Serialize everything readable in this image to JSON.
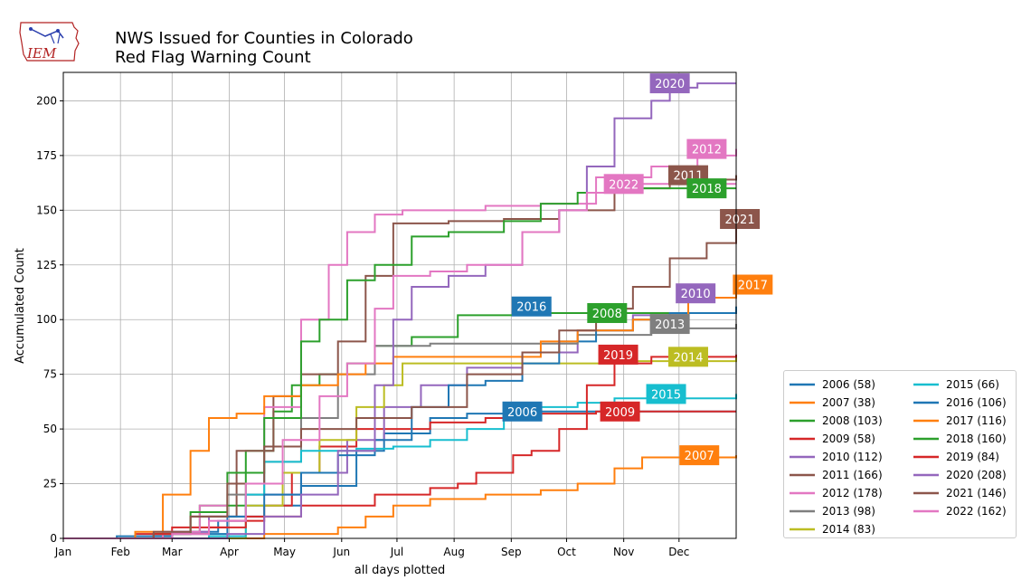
{
  "header": {
    "title_line1": "NWS Issued for Counties in Colorado",
    "title_line2": "Red Flag Warning Count",
    "logo_text": "IEM"
  },
  "chart_data": {
    "type": "line",
    "step": true,
    "xlabel": "all days plotted",
    "ylabel": "Accumulated Count",
    "x_unit": "day of year",
    "xlim": [
      1,
      366
    ],
    "ylim": [
      0,
      213
    ],
    "grid": true,
    "legend_placement": "outside-right-bottom",
    "month_ticks": [
      {
        "label": "Jan",
        "day": 1
      },
      {
        "label": "Feb",
        "day": 32
      },
      {
        "label": "Mar",
        "day": 60
      },
      {
        "label": "Apr",
        "day": 91
      },
      {
        "label": "May",
        "day": 121
      },
      {
        "label": "Jun",
        "day": 152
      },
      {
        "label": "Jul",
        "day": 182
      },
      {
        "label": "Aug",
        "day": 213
      },
      {
        "label": "Sep",
        "day": 244
      },
      {
        "label": "Oct",
        "day": 274
      },
      {
        "label": "Nov",
        "day": 305
      },
      {
        "label": "Dec",
        "day": 335
      }
    ],
    "y_ticks": [
      0,
      25,
      50,
      75,
      100,
      125,
      150,
      175,
      200
    ],
    "series": [
      {
        "name": "2006 (58)",
        "year": "2006",
        "color": "#1f77b4",
        "points": [
          [
            1,
            0
          ],
          [
            30,
            1
          ],
          [
            60,
            3
          ],
          [
            85,
            8
          ],
          [
            100,
            15
          ],
          [
            130,
            24
          ],
          [
            160,
            40
          ],
          [
            175,
            48
          ],
          [
            200,
            55
          ],
          [
            220,
            57
          ],
          [
            240,
            58
          ],
          [
            366,
            58
          ]
        ],
        "label_day": 250,
        "label_y": 58
      },
      {
        "name": "2007 (38)",
        "year": "2007",
        "color": "#ff7f0e",
        "points": [
          [
            1,
            0
          ],
          [
            95,
            0
          ],
          [
            110,
            2
          ],
          [
            150,
            5
          ],
          [
            165,
            10
          ],
          [
            180,
            15
          ],
          [
            200,
            18
          ],
          [
            230,
            20
          ],
          [
            260,
            22
          ],
          [
            280,
            25
          ],
          [
            300,
            32
          ],
          [
            315,
            37
          ],
          [
            366,
            38
          ]
        ],
        "label_day": 346,
        "label_y": 38
      },
      {
        "name": "2008 (103)",
        "year": "2008",
        "color": "#2ca02c",
        "points": [
          [
            1,
            0
          ],
          [
            55,
            3
          ],
          [
            75,
            15
          ],
          [
            100,
            40
          ],
          [
            115,
            58
          ],
          [
            125,
            70
          ],
          [
            140,
            75
          ],
          [
            155,
            80
          ],
          [
            170,
            88
          ],
          [
            190,
            92
          ],
          [
            215,
            102
          ],
          [
            250,
            103
          ],
          [
            366,
            103
          ]
        ],
        "label_day": 296,
        "label_y": 103
      },
      {
        "name": "2009 (58)",
        "year": "2009",
        "color": "#d62728",
        "points": [
          [
            1,
            0
          ],
          [
            40,
            2
          ],
          [
            60,
            5
          ],
          [
            90,
            8
          ],
          [
            110,
            15
          ],
          [
            125,
            30
          ],
          [
            140,
            42
          ],
          [
            160,
            50
          ],
          [
            200,
            53
          ],
          [
            230,
            55
          ],
          [
            260,
            57
          ],
          [
            290,
            58
          ],
          [
            366,
            58
          ]
        ],
        "label_day": 303,
        "label_y": 58
      },
      {
        "name": "2010 (112)",
        "year": "2010",
        "color": "#9467bd",
        "points": [
          [
            1,
            0
          ],
          [
            60,
            3
          ],
          [
            80,
            10
          ],
          [
            100,
            20
          ],
          [
            130,
            30
          ],
          [
            155,
            45
          ],
          [
            175,
            60
          ],
          [
            195,
            70
          ],
          [
            220,
            78
          ],
          [
            250,
            85
          ],
          [
            280,
            95
          ],
          [
            310,
            102
          ],
          [
            340,
            110
          ],
          [
            366,
            112
          ]
        ],
        "label_day": 344,
        "label_y": 112
      },
      {
        "name": "2011 (166)",
        "year": "2011",
        "color": "#8c564b",
        "points": [
          [
            1,
            0
          ],
          [
            50,
            2
          ],
          [
            70,
            10
          ],
          [
            95,
            40
          ],
          [
            115,
            65
          ],
          [
            130,
            75
          ],
          [
            150,
            90
          ],
          [
            165,
            120
          ],
          [
            180,
            144
          ],
          [
            210,
            145
          ],
          [
            240,
            146
          ],
          [
            270,
            150
          ],
          [
            300,
            160
          ],
          [
            330,
            164
          ],
          [
            366,
            166
          ]
        ],
        "label_day": 340,
        "label_y": 166
      },
      {
        "name": "2012 (178)",
        "year": "2012",
        "color": "#e377c2",
        "points": [
          [
            1,
            0
          ],
          [
            55,
            3
          ],
          [
            75,
            15
          ],
          [
            90,
            30
          ],
          [
            110,
            60
          ],
          [
            130,
            100
          ],
          [
            145,
            125
          ],
          [
            155,
            140
          ],
          [
            170,
            148
          ],
          [
            185,
            150
          ],
          [
            230,
            152
          ],
          [
            260,
            153
          ],
          [
            290,
            165
          ],
          [
            320,
            170
          ],
          [
            345,
            175
          ],
          [
            366,
            178
          ]
        ],
        "label_day": 350,
        "label_y": 178
      },
      {
        "name": "2013 (98)",
        "year": "2013",
        "color": "#7f7f7f",
        "points": [
          [
            1,
            0
          ],
          [
            50,
            2
          ],
          [
            70,
            10
          ],
          [
            90,
            20
          ],
          [
            110,
            35
          ],
          [
            130,
            55
          ],
          [
            150,
            75
          ],
          [
            170,
            88
          ],
          [
            200,
            89
          ],
          [
            240,
            89
          ],
          [
            280,
            93
          ],
          [
            320,
            96
          ],
          [
            366,
            98
          ]
        ],
        "label_day": 330,
        "label_y": 98
      },
      {
        "name": "2014 (83)",
        "year": "2014",
        "color": "#bcbd22",
        "points": [
          [
            1,
            0
          ],
          [
            80,
            0
          ],
          [
            100,
            15
          ],
          [
            120,
            30
          ],
          [
            140,
            45
          ],
          [
            160,
            60
          ],
          [
            175,
            70
          ],
          [
            185,
            80
          ],
          [
            250,
            80
          ],
          [
            300,
            81
          ],
          [
            366,
            83
          ]
        ],
        "label_day": 340,
        "label_y": 83
      },
      {
        "name": "2015 (66)",
        "year": "2015",
        "color": "#17becf",
        "points": [
          [
            1,
            0
          ],
          [
            80,
            1
          ],
          [
            100,
            20
          ],
          [
            110,
            35
          ],
          [
            130,
            40
          ],
          [
            160,
            41
          ],
          [
            180,
            42
          ],
          [
            200,
            45
          ],
          [
            220,
            50
          ],
          [
            240,
            56
          ],
          [
            260,
            60
          ],
          [
            280,
            62
          ],
          [
            300,
            64
          ],
          [
            366,
            66
          ]
        ],
        "label_day": 328,
        "label_y": 66
      },
      {
        "name": "2016 (106)",
        "year": "2016",
        "color": "#1f77b4",
        "points": [
          [
            1,
            0
          ],
          [
            60,
            2
          ],
          [
            90,
            10
          ],
          [
            110,
            20
          ],
          [
            130,
            30
          ],
          [
            150,
            38
          ],
          [
            170,
            45
          ],
          [
            190,
            60
          ],
          [
            210,
            70
          ],
          [
            230,
            72
          ],
          [
            250,
            80
          ],
          [
            270,
            90
          ],
          [
            290,
            95
          ],
          [
            310,
            100
          ],
          [
            330,
            103
          ],
          [
            366,
            106
          ]
        ],
        "label_day": 255,
        "label_y": 106
      },
      {
        "name": "2017 (116)",
        "year": "2017",
        "color": "#ff7f0e",
        "points": [
          [
            1,
            0
          ],
          [
            40,
            3
          ],
          [
            55,
            20
          ],
          [
            70,
            40
          ],
          [
            80,
            55
          ],
          [
            95,
            57
          ],
          [
            110,
            65
          ],
          [
            130,
            70
          ],
          [
            150,
            75
          ],
          [
            165,
            80
          ],
          [
            180,
            83
          ],
          [
            230,
            83
          ],
          [
            260,
            90
          ],
          [
            280,
            95
          ],
          [
            310,
            100
          ],
          [
            340,
            110
          ],
          [
            366,
            116
          ]
        ],
        "label_day": 375,
        "label_y": 116
      },
      {
        "name": "2018 (160)",
        "year": "2018",
        "color": "#2ca02c",
        "points": [
          [
            1,
            0
          ],
          [
            50,
            2
          ],
          [
            70,
            12
          ],
          [
            90,
            30
          ],
          [
            110,
            55
          ],
          [
            130,
            90
          ],
          [
            140,
            100
          ],
          [
            155,
            118
          ],
          [
            170,
            125
          ],
          [
            190,
            138
          ],
          [
            210,
            140
          ],
          [
            240,
            145
          ],
          [
            260,
            153
          ],
          [
            280,
            158
          ],
          [
            300,
            160
          ],
          [
            366,
            160
          ]
        ],
        "label_day": 350,
        "label_y": 160
      },
      {
        "name": "2019 (84)",
        "year": "2019",
        "color": "#d62728",
        "points": [
          [
            1,
            0
          ],
          [
            50,
            2
          ],
          [
            80,
            5
          ],
          [
            100,
            10
          ],
          [
            130,
            15
          ],
          [
            170,
            20
          ],
          [
            200,
            23
          ],
          [
            215,
            25
          ],
          [
            225,
            30
          ],
          [
            245,
            38
          ],
          [
            255,
            40
          ],
          [
            270,
            50
          ],
          [
            285,
            70
          ],
          [
            300,
            80
          ],
          [
            320,
            83
          ],
          [
            366,
            84
          ]
        ],
        "label_day": 302,
        "label_y": 84
      },
      {
        "name": "2020 (208)",
        "year": "2020",
        "color": "#9467bd",
        "points": [
          [
            1,
            0
          ],
          [
            90,
            2
          ],
          [
            110,
            10
          ],
          [
            130,
            20
          ],
          [
            150,
            40
          ],
          [
            170,
            70
          ],
          [
            180,
            100
          ],
          [
            190,
            115
          ],
          [
            210,
            120
          ],
          [
            230,
            125
          ],
          [
            250,
            140
          ],
          [
            270,
            150
          ],
          [
            285,
            170
          ],
          [
            300,
            192
          ],
          [
            320,
            200
          ],
          [
            330,
            206
          ],
          [
            345,
            208
          ],
          [
            366,
            208
          ]
        ],
        "label_day": 330,
        "label_y": 208
      },
      {
        "name": "2021 (146)",
        "year": "2021",
        "color": "#8c564b",
        "points": [
          [
            1,
            0
          ],
          [
            50,
            3
          ],
          [
            70,
            10
          ],
          [
            90,
            25
          ],
          [
            110,
            42
          ],
          [
            130,
            50
          ],
          [
            160,
            55
          ],
          [
            190,
            60
          ],
          [
            220,
            75
          ],
          [
            250,
            85
          ],
          [
            270,
            95
          ],
          [
            290,
            105
          ],
          [
            310,
            115
          ],
          [
            330,
            128
          ],
          [
            350,
            135
          ],
          [
            366,
            146
          ]
        ],
        "label_day": 368,
        "label_y": 146
      },
      {
        "name": "2022 (162)",
        "year": "2022",
        "color": "#e377c2",
        "points": [
          [
            1,
            0
          ],
          [
            60,
            2
          ],
          [
            80,
            8
          ],
          [
            100,
            25
          ],
          [
            120,
            45
          ],
          [
            140,
            65
          ],
          [
            155,
            80
          ],
          [
            170,
            105
          ],
          [
            180,
            120
          ],
          [
            200,
            122
          ],
          [
            220,
            125
          ],
          [
            250,
            140
          ],
          [
            270,
            150
          ],
          [
            285,
            158
          ],
          [
            300,
            162
          ],
          [
            366,
            162
          ]
        ],
        "label_day": 305,
        "label_y": 162
      }
    ],
    "legend_order_col1": [
      "2006 (58)",
      "2007 (38)",
      "2008 (103)",
      "2009 (58)",
      "2010 (112)",
      "2011 (166)",
      "2012 (178)",
      "2013 (98)",
      "2014 (83)"
    ],
    "legend_order_col2": [
      "2015 (66)",
      "2016 (106)",
      "2017 (116)",
      "2018 (160)",
      "2019 (84)",
      "2020 (208)",
      "2021 (146)",
      "2022 (162)"
    ]
  }
}
